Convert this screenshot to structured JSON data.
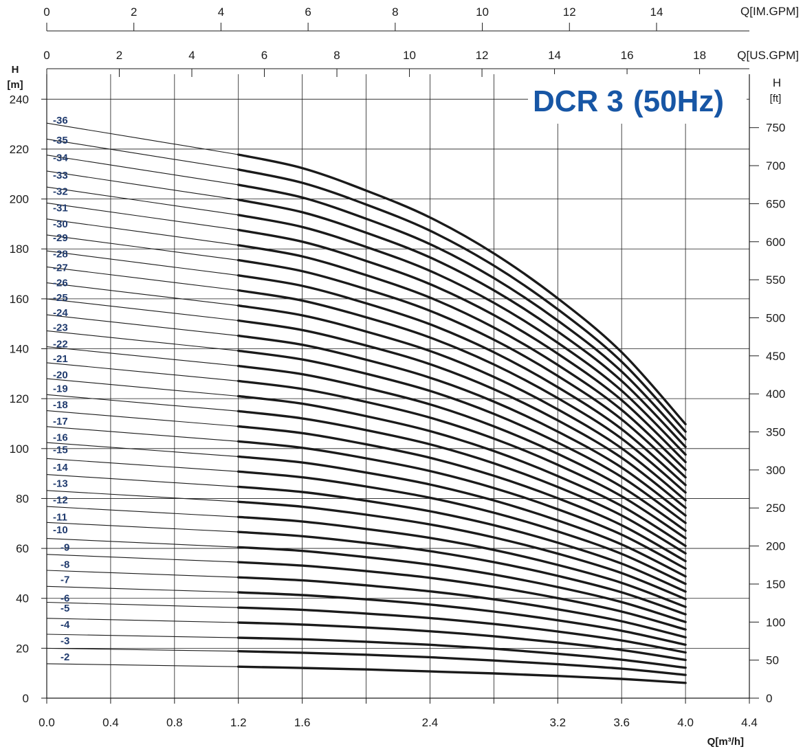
{
  "chart_data": {
    "type": "line",
    "title": "DCR 3",
    "title_suffix": "(50Hz)",
    "xlabel": "Q[m³/h]",
    "ylabel_left": {
      "line1": "H",
      "line2": "[m]"
    },
    "ylabel_right": {
      "line1": "H",
      "line2": "[ft]"
    },
    "x_range": [
      0,
      4.4
    ],
    "y_range": [
      0,
      250
    ],
    "x_ticks": [
      "0.0",
      "0.4",
      "0.8",
      "1.2",
      "1.6",
      "2.4",
      "3.2",
      "3.6",
      "4.0",
      "4.4"
    ],
    "x_tick_values": [
      0,
      0.4,
      0.8,
      1.2,
      1.6,
      2.4,
      3.2,
      3.6,
      4.0,
      4.4
    ],
    "x_minor_ticks": [
      2.0,
      2.8
    ],
    "y_ticks": [
      "0",
      "20",
      "40",
      "60",
      "80",
      "100",
      "120",
      "140",
      "160",
      "180",
      "200",
      "220",
      "240"
    ],
    "y_tick_values": [
      0,
      20,
      40,
      60,
      80,
      100,
      120,
      140,
      160,
      180,
      200,
      220,
      240
    ],
    "ft_ticks": [
      "0",
      "50",
      "100",
      "150",
      "200",
      "250",
      "300",
      "350",
      "400",
      "450",
      "500",
      "550",
      "600",
      "650",
      "700",
      "750"
    ],
    "ft_tick_values": [
      0,
      50,
      100,
      150,
      200,
      250,
      300,
      350,
      400,
      450,
      500,
      550,
      600,
      650,
      700,
      750
    ],
    "usgpm_label": "Q[US.GPM]",
    "usgpm_ticks": [
      "0",
      "2",
      "4",
      "6",
      "8",
      "10",
      "12",
      "14",
      "16",
      "18"
    ],
    "usgpm_tick_values": [
      0,
      2,
      4,
      6,
      8,
      10,
      12,
      14,
      16,
      18
    ],
    "imgpm_label": "Q[IM.GPM]",
    "imgpm_ticks": [
      "0",
      "2",
      "4",
      "6",
      "8",
      "10",
      "12",
      "14"
    ],
    "imgpm_tick_values": [
      0,
      2,
      4,
      6,
      8,
      10,
      12,
      14
    ],
    "operating_range": [
      1.2,
      4.0
    ],
    "grid": true,
    "curve_x": [
      0,
      1.2,
      1.6,
      2.0,
      2.4,
      2.8,
      3.2,
      3.6,
      4.0
    ],
    "head_per_stage": [
      6.4,
      6.05,
      5.9,
      5.65,
      5.35,
      4.95,
      4.45,
      3.85,
      3.05
    ],
    "series": [
      {
        "name": "-2",
        "label_y": 16.5,
        "values": [
          13.8,
          12.6,
          12.1,
          11.5,
          10.7,
          9.9,
          8.9,
          7.7,
          6.1
        ]
      },
      {
        "name": "-3",
        "label_y": 23.0,
        "values": [
          20.0,
          18.8,
          18.2,
          17.4,
          16.4,
          15.1,
          13.6,
          11.8,
          9.3
        ]
      },
      {
        "name": "-4",
        "label_y": 29.5,
        "values": [
          25.6,
          24.2,
          23.6,
          22.6,
          21.4,
          19.8,
          17.8,
          15.4,
          12.2
        ]
      },
      {
        "name": "-5",
        "label_y": 36.0,
        "values": [
          32.0,
          30.3,
          29.5,
          28.3,
          26.8,
          24.8,
          22.3,
          19.3,
          15.3
        ]
      },
      {
        "name": "-6",
        "label_y": 40.0,
        "values": [
          38.4,
          36.3,
          35.4,
          33.9,
          32.1,
          29.7,
          26.7,
          23.1,
          18.3
        ]
      },
      {
        "name": "-7",
        "label_y": 47.5,
        "values": [
          44.8,
          42.4,
          41.3,
          39.6,
          37.5,
          34.7,
          31.2,
          27.0,
          21.4
        ]
      },
      {
        "name": "-8",
        "label_y": 53.5,
        "values": [
          51.2,
          48.4,
          47.2,
          45.2,
          42.8,
          39.6,
          35.6,
          30.8,
          24.4
        ]
      },
      {
        "name": "-9",
        "label_y": 60.5,
        "values": [
          57.6,
          54.5,
          53.1,
          50.9,
          48.2,
          44.6,
          40.1,
          34.7,
          27.5
        ]
      },
      {
        "name": "-10",
        "label_y": 67.5,
        "values": [
          64.0,
          60.5,
          59.0,
          56.5,
          53.5,
          49.5,
          44.5,
          38.5,
          30.5
        ]
      },
      {
        "name": "-11",
        "label_y": 72.5,
        "values": [
          70.4,
          66.6,
          64.9,
          62.2,
          58.9,
          54.5,
          49.0,
          42.4,
          33.6
        ]
      },
      {
        "name": "-12",
        "label_y": 79.5,
        "values": [
          76.8,
          72.6,
          70.8,
          67.8,
          64.2,
          59.4,
          53.4,
          46.2,
          36.6
        ]
      },
      {
        "name": "-13",
        "label_y": 86.0,
        "values": [
          83.2,
          78.7,
          76.7,
          73.5,
          69.6,
          64.4,
          57.9,
          50.1,
          39.7
        ]
      },
      {
        "name": "-14",
        "label_y": 92.5,
        "values": [
          89.6,
          84.7,
          82.6,
          79.1,
          74.9,
          69.3,
          62.3,
          53.9,
          42.7
        ]
      },
      {
        "name": "-15",
        "label_y": 99.5,
        "values": [
          96.0,
          90.8,
          88.5,
          84.8,
          80.3,
          74.3,
          66.8,
          57.8,
          45.8
        ]
      },
      {
        "name": "-16",
        "label_y": 104.5,
        "values": [
          102.4,
          96.8,
          94.4,
          90.4,
          85.6,
          79.2,
          71.2,
          61.6,
          48.8
        ]
      },
      {
        "name": "-17",
        "label_y": 111.0,
        "values": [
          108.8,
          102.9,
          100.3,
          96.1,
          91.0,
          84.2,
          75.7,
          65.5,
          51.9
        ]
      },
      {
        "name": "-18",
        "label_y": 117.5,
        "values": [
          115.2,
          108.9,
          106.2,
          101.7,
          96.3,
          89.1,
          80.1,
          69.3,
          54.9
        ]
      },
      {
        "name": "-19",
        "label_y": 124.0,
        "values": [
          121.6,
          115.0,
          112.1,
          107.4,
          101.7,
          94.1,
          84.6,
          73.2,
          58.0
        ]
      },
      {
        "name": "-20",
        "label_y": 129.5,
        "values": [
          128.0,
          121.0,
          118.0,
          113.0,
          107.0,
          99.0,
          89.0,
          77.0,
          61.0
        ]
      },
      {
        "name": "-21",
        "label_y": 136.0,
        "values": [
          134.4,
          127.1,
          123.9,
          118.7,
          112.4,
          104.0,
          93.5,
          80.9,
          64.1
        ]
      },
      {
        "name": "-22",
        "label_y": 142.0,
        "values": [
          140.8,
          133.1,
          129.8,
          124.3,
          117.7,
          108.9,
          97.9,
          84.7,
          67.1
        ]
      },
      {
        "name": "-23",
        "label_y": 148.5,
        "values": [
          147.2,
          139.2,
          135.7,
          130.0,
          123.1,
          113.9,
          102.4,
          88.6,
          70.2
        ]
      },
      {
        "name": "-24",
        "label_y": 154.5,
        "values": [
          153.6,
          145.2,
          141.6,
          135.6,
          128.4,
          118.8,
          106.8,
          92.4,
          73.2
        ]
      },
      {
        "name": "-25",
        "label_y": 160.5,
        "values": [
          160.0,
          151.3,
          147.5,
          141.3,
          133.8,
          123.8,
          111.3,
          96.3,
          76.3
        ]
      },
      {
        "name": "-26",
        "label_y": 166.5,
        "values": [
          166.4,
          157.3,
          153.4,
          146.9,
          139.1,
          128.7,
          115.7,
          100.1,
          79.3
        ]
      },
      {
        "name": "-27",
        "label_y": 172.5,
        "values": [
          172.8,
          163.4,
          159.3,
          152.6,
          144.5,
          133.7,
          120.2,
          104.0,
          82.4
        ]
      },
      {
        "name": "-28",
        "label_y": 178.0,
        "values": [
          179.2,
          169.4,
          165.2,
          158.2,
          149.8,
          138.6,
          124.6,
          107.8,
          85.4
        ]
      },
      {
        "name": "-29",
        "label_y": 184.5,
        "values": [
          185.6,
          175.5,
          171.1,
          163.9,
          155.2,
          143.6,
          129.1,
          111.7,
          88.5
        ]
      },
      {
        "name": "-30",
        "label_y": 190.0,
        "values": [
          192.0,
          181.5,
          177.0,
          169.5,
          160.5,
          148.5,
          133.5,
          115.5,
          91.5
        ]
      },
      {
        "name": "-31",
        "label_y": 196.5,
        "values": [
          198.4,
          187.6,
          182.9,
          175.2,
          165.9,
          153.5,
          138.0,
          119.4,
          94.6
        ]
      },
      {
        "name": "-32",
        "label_y": 203.0,
        "values": [
          204.8,
          193.6,
          188.8,
          180.8,
          171.2,
          158.4,
          142.4,
          123.2,
          97.6
        ]
      },
      {
        "name": "-33",
        "label_y": 209.5,
        "values": [
          211.2,
          199.7,
          194.7,
          186.5,
          176.6,
          163.4,
          146.9,
          127.1,
          100.7
        ]
      },
      {
        "name": "-34",
        "label_y": 216.5,
        "values": [
          217.6,
          205.7,
          200.6,
          192.1,
          181.9,
          168.3,
          151.3,
          130.9,
          103.7
        ]
      },
      {
        "name": "-35",
        "label_y": 223.5,
        "values": [
          224.0,
          211.8,
          206.5,
          197.8,
          187.3,
          173.3,
          155.8,
          134.8,
          106.8
        ]
      },
      {
        "name": "-36",
        "label_y": 231.5,
        "values": [
          230.4,
          217.8,
          212.4,
          203.4,
          192.6,
          178.2,
          160.2,
          138.6,
          109.8
        ]
      }
    ],
    "colors": {
      "curve": "#1a1a1a",
      "grid": "#1a1a1a",
      "stage_label": "#1f3a6d",
      "title": "#1756a5"
    }
  }
}
